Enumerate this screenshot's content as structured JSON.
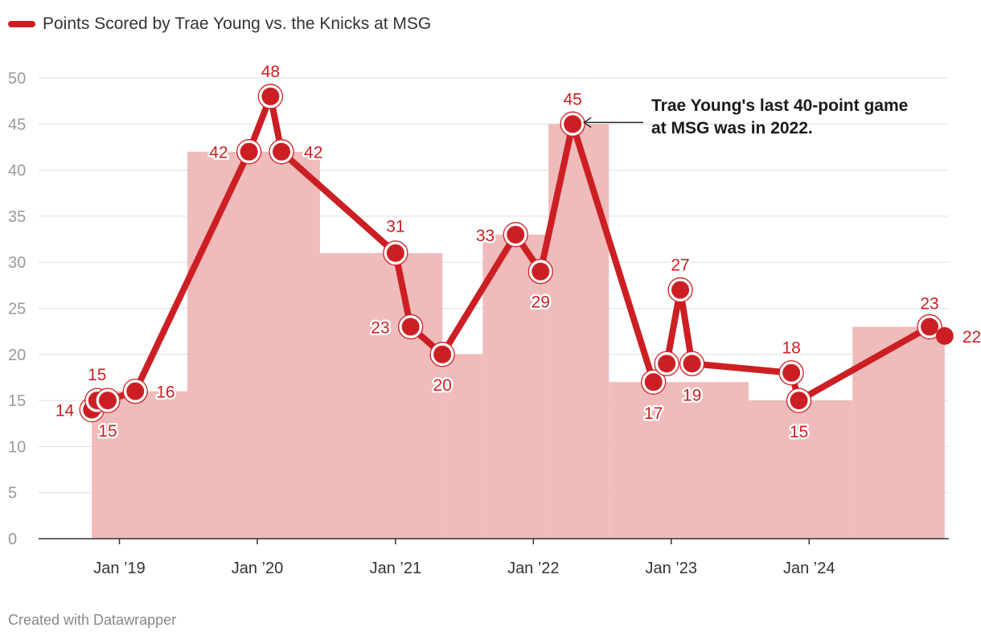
{
  "chart_data": {
    "type": "line",
    "series": [
      {
        "name": "Points Scored by Trae Young vs. the Knicks at MSG",
        "color": "#cc1f24",
        "points": [
          {
            "x": "2018-10-20",
            "y": 14,
            "label": "14"
          },
          {
            "x": "2018-11-03",
            "y": 15,
            "label": "15"
          },
          {
            "x": "2018-12-01",
            "y": 15,
            "label": "15"
          },
          {
            "x": "2019-02-12",
            "y": 16,
            "label": "16"
          },
          {
            "x": "2019-12-10",
            "y": 42,
            "label": "42"
          },
          {
            "x": "2020-02-05",
            "y": 48,
            "label": "48"
          },
          {
            "x": "2020-03-05",
            "y": 42,
            "label": "42"
          },
          {
            "x": "2021-01-01",
            "y": 31,
            "label": "31"
          },
          {
            "x": "2021-02-10",
            "y": 23,
            "label": "23"
          },
          {
            "x": "2021-05-05",
            "y": 20,
            "label": "20"
          },
          {
            "x": "2021-11-15",
            "y": 33,
            "label": "33"
          },
          {
            "x": "2022-01-20",
            "y": 29,
            "label": "29"
          },
          {
            "x": "2022-04-15",
            "y": 45,
            "label": "45"
          },
          {
            "x": "2022-11-15",
            "y": 17,
            "label": "17"
          },
          {
            "x": "2022-12-20",
            "y": 19,
            "label": ""
          },
          {
            "x": "2023-01-25",
            "y": 27,
            "label": "27"
          },
          {
            "x": "2023-02-25",
            "y": 19,
            "label": "19"
          },
          {
            "x": "2023-11-15",
            "y": 18,
            "label": "18"
          },
          {
            "x": "2023-12-05",
            "y": 15,
            "label": "15"
          },
          {
            "x": "2024-11-15",
            "y": 23,
            "label": "23"
          },
          {
            "x": "2024-12-25",
            "y": 22,
            "label": "22"
          }
        ]
      }
    ],
    "area_series": {
      "color": "#efbbbb",
      "steps": [
        {
          "x_start": "2018-10-20",
          "x_end": "2019-06-30",
          "y": 16
        },
        {
          "x_start": "2019-06-30",
          "x_end": "2020-06-15",
          "y": 42
        },
        {
          "x_start": "2020-06-15",
          "x_end": "2021-05-05",
          "y": 31
        },
        {
          "x_start": "2021-05-05",
          "x_end": "2021-08-20",
          "y": 20
        },
        {
          "x_start": "2021-08-20",
          "x_end": "2022-02-10",
          "y": 33
        },
        {
          "x_start": "2022-02-10",
          "x_end": "2022-07-20",
          "y": 45
        },
        {
          "x_start": "2022-07-20",
          "x_end": "2023-07-25",
          "y": 17
        },
        {
          "x_start": "2023-07-25",
          "x_end": "2024-04-25",
          "y": 15
        },
        {
          "x_start": "2024-04-25",
          "x_end": "2024-12-25",
          "y": 23
        }
      ]
    },
    "x_ticks": [
      {
        "x": "2019-01-01",
        "label": "Jan ’19"
      },
      {
        "x": "2020-01-01",
        "label": "Jan ’20"
      },
      {
        "x": "2021-01-01",
        "label": "Jan ’21"
      },
      {
        "x": "2022-01-01",
        "label": "Jan ’22"
      },
      {
        "x": "2023-01-01",
        "label": "Jan ’23"
      },
      {
        "x": "2024-01-01",
        "label": "Jan ’24"
      }
    ],
    "xlim": [
      "2018-06-01",
      "2025-01-05"
    ],
    "y_ticks": [
      0,
      5,
      10,
      15,
      20,
      25,
      30,
      35,
      40,
      45,
      50
    ],
    "ylim": [
      0,
      50
    ],
    "grid": true,
    "legend": "top-left",
    "annotation": {
      "lines": [
        "Trae Young's last 40-point game",
        "at MSG was in 2022."
      ],
      "target_index": 12
    }
  },
  "footer": "Created with Datawrapper"
}
